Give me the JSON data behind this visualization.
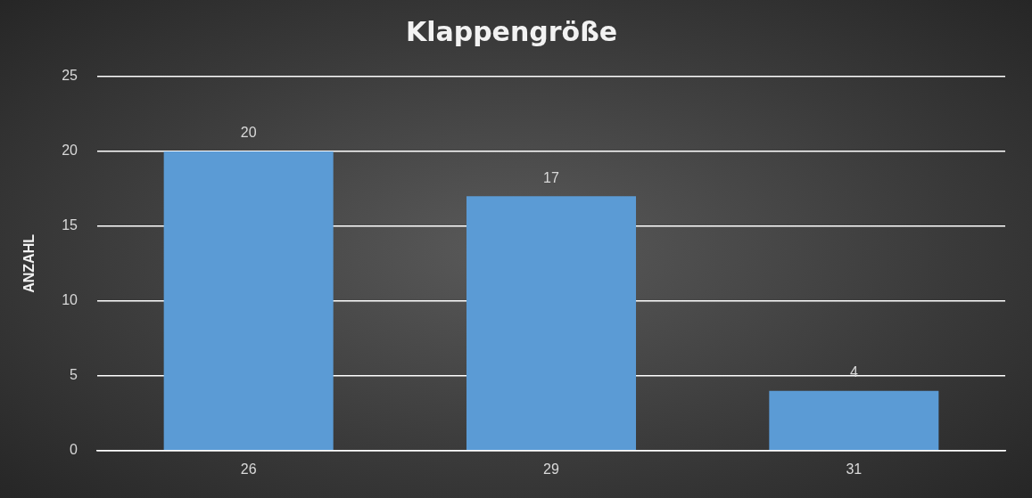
{
  "chart_data": {
    "type": "bar",
    "title": "Klappengröße",
    "ylabel": "ANZAHL",
    "categories": [
      "26",
      "29",
      "31"
    ],
    "values": [
      20,
      17,
      4
    ],
    "color": "#5b9bd5",
    "ylim": [
      0,
      25
    ],
    "yticks": [
      0,
      5,
      10,
      15,
      20,
      25
    ],
    "grid": "y",
    "legend": false,
    "data_labels": true
  }
}
